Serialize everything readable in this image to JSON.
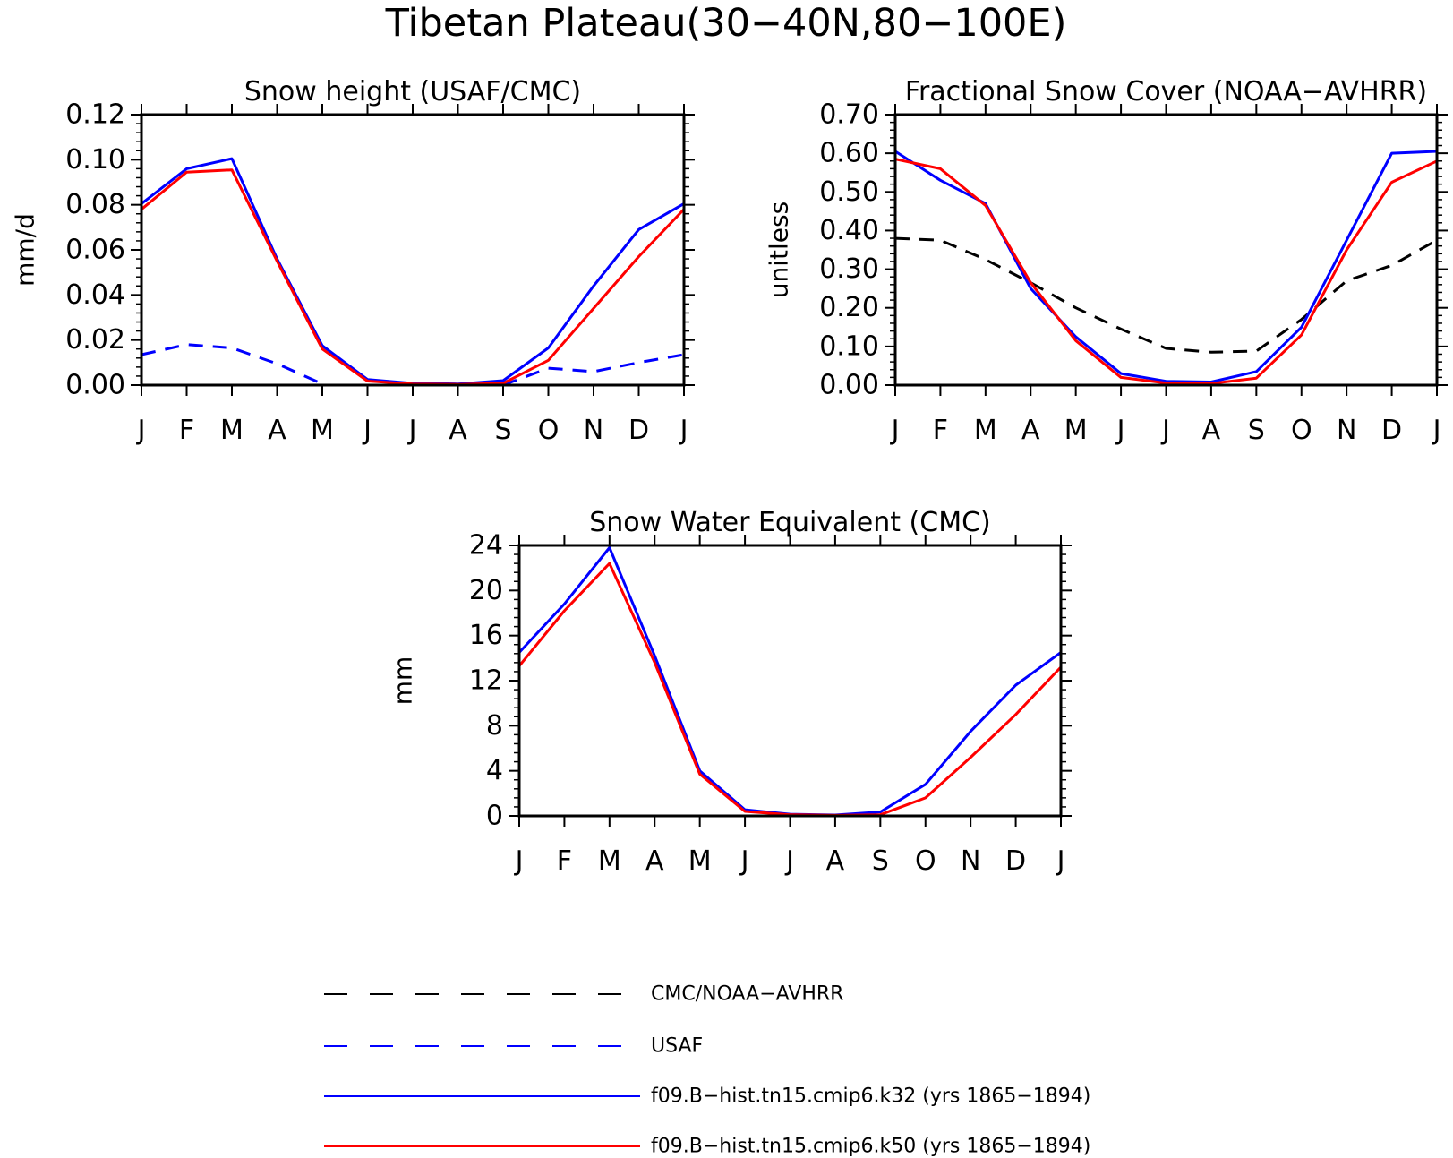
{
  "figure": {
    "title": "Tibetan Plateau(30−40N,80−100E)"
  },
  "chart_data": [
    {
      "type": "line",
      "title": "Snow height (USAF/CMC)",
      "xlabel": "",
      "ylabel": "mm/d",
      "categories": [
        "J",
        "F",
        "M",
        "A",
        "M",
        "J",
        "J",
        "A",
        "S",
        "O",
        "N",
        "D",
        "J"
      ],
      "ylim": [
        0,
        0.12
      ],
      "yticks": [
        "0.00",
        "0.02",
        "0.04",
        "0.06",
        "0.08",
        "0.10",
        "0.12"
      ],
      "series": [
        {
          "name": "USAF",
          "color": "#0000ff",
          "dash": "dashed",
          "values": [
            0.0135,
            0.018,
            0.0165,
            0.0095,
            0.0005,
            null,
            null,
            null,
            0.0,
            0.0075,
            0.006,
            0.01,
            0.0135
          ]
        },
        {
          "name": "f09.B−hist.tn15.cmip6.k32 (yrs 1865−1894)",
          "color": "#0000ff",
          "dash": "solid",
          "values": [
            0.0805,
            0.096,
            0.1005,
            0.056,
            0.0175,
            0.0025,
            0.0008,
            0.0005,
            0.002,
            0.0165,
            0.044,
            0.069,
            0.0805
          ]
        },
        {
          "name": "f09.B−hist.tn15.cmip6.k50 (yrs 1865−1894)",
          "color": "#ff0000",
          "dash": "solid",
          "values": [
            0.078,
            0.0945,
            0.0955,
            0.055,
            0.016,
            0.0018,
            0.0005,
            0.0003,
            0.0008,
            0.011,
            0.034,
            0.057,
            0.078
          ]
        }
      ]
    },
    {
      "type": "line",
      "title": "Fractional Snow Cover (NOAA−AVHRR)",
      "xlabel": "",
      "ylabel": "unitless",
      "categories": [
        "J",
        "F",
        "M",
        "A",
        "M",
        "J",
        "J",
        "A",
        "S",
        "O",
        "N",
        "D",
        "J"
      ],
      "ylim": [
        0,
        0.7
      ],
      "yticks": [
        "0.00",
        "0.10",
        "0.20",
        "0.30",
        "0.40",
        "0.50",
        "0.60",
        "0.70"
      ],
      "series": [
        {
          "name": "CMC/NOAA−AVHRR",
          "color": "#000000",
          "dash": "dashed",
          "values": [
            0.38,
            0.375,
            0.325,
            0.265,
            0.2,
            0.145,
            0.095,
            0.085,
            0.088,
            0.17,
            0.27,
            0.31,
            0.375
          ]
        },
        {
          "name": "f09.B−hist.tn15.cmip6.k32 (yrs 1865−1894)",
          "color": "#0000ff",
          "dash": "solid",
          "values": [
            0.605,
            0.53,
            0.47,
            0.25,
            0.125,
            0.03,
            0.01,
            0.008,
            0.035,
            0.15,
            0.375,
            0.6,
            0.605
          ]
        },
        {
          "name": "f09.B−hist.tn15.cmip6.k50 (yrs 1865−1894)",
          "color": "#ff0000",
          "dash": "solid",
          "values": [
            0.585,
            0.56,
            0.465,
            0.265,
            0.115,
            0.02,
            0.005,
            0.004,
            0.018,
            0.13,
            0.35,
            0.525,
            0.58
          ]
        }
      ]
    },
    {
      "type": "line",
      "title": "Snow Water Equivalent (CMC)",
      "xlabel": "",
      "ylabel": "mm",
      "categories": [
        "J",
        "F",
        "M",
        "A",
        "M",
        "J",
        "J",
        "A",
        "S",
        "O",
        "N",
        "D",
        "J"
      ],
      "ylim": [
        0,
        24
      ],
      "yticks": [
        "0",
        "4",
        "8",
        "12",
        "16",
        "20",
        "24"
      ],
      "series": [
        {
          "name": "f09.B−hist.tn15.cmip6.k32 (yrs 1865−1894)",
          "color": "#0000ff",
          "dash": "solid",
          "values": [
            14.5,
            18.8,
            23.8,
            14.2,
            4.0,
            0.55,
            0.15,
            0.08,
            0.35,
            2.8,
            7.5,
            11.6,
            14.5
          ]
        },
        {
          "name": "f09.B−hist.tn15.cmip6.k50 (yrs 1865−1894)",
          "color": "#ff0000",
          "dash": "solid",
          "values": [
            13.3,
            18.2,
            22.4,
            13.6,
            3.7,
            0.4,
            0.1,
            0.05,
            0.1,
            1.6,
            5.2,
            9.0,
            13.2
          ]
        }
      ]
    }
  ],
  "legend": {
    "position": "bottom-center",
    "entries": [
      {
        "label": "CMC/NOAA−AVHRR",
        "color": "#000000",
        "dash": "dashed"
      },
      {
        "label": "USAF",
        "color": "#0000ff",
        "dash": "dashed"
      },
      {
        "label": "f09.B−hist.tn15.cmip6.k32 (yrs 1865−1894)",
        "color": "#0000ff",
        "dash": "solid"
      },
      {
        "label": "f09.B−hist.tn15.cmip6.k50 (yrs 1865−1894)",
        "color": "#ff0000",
        "dash": "solid"
      }
    ]
  }
}
